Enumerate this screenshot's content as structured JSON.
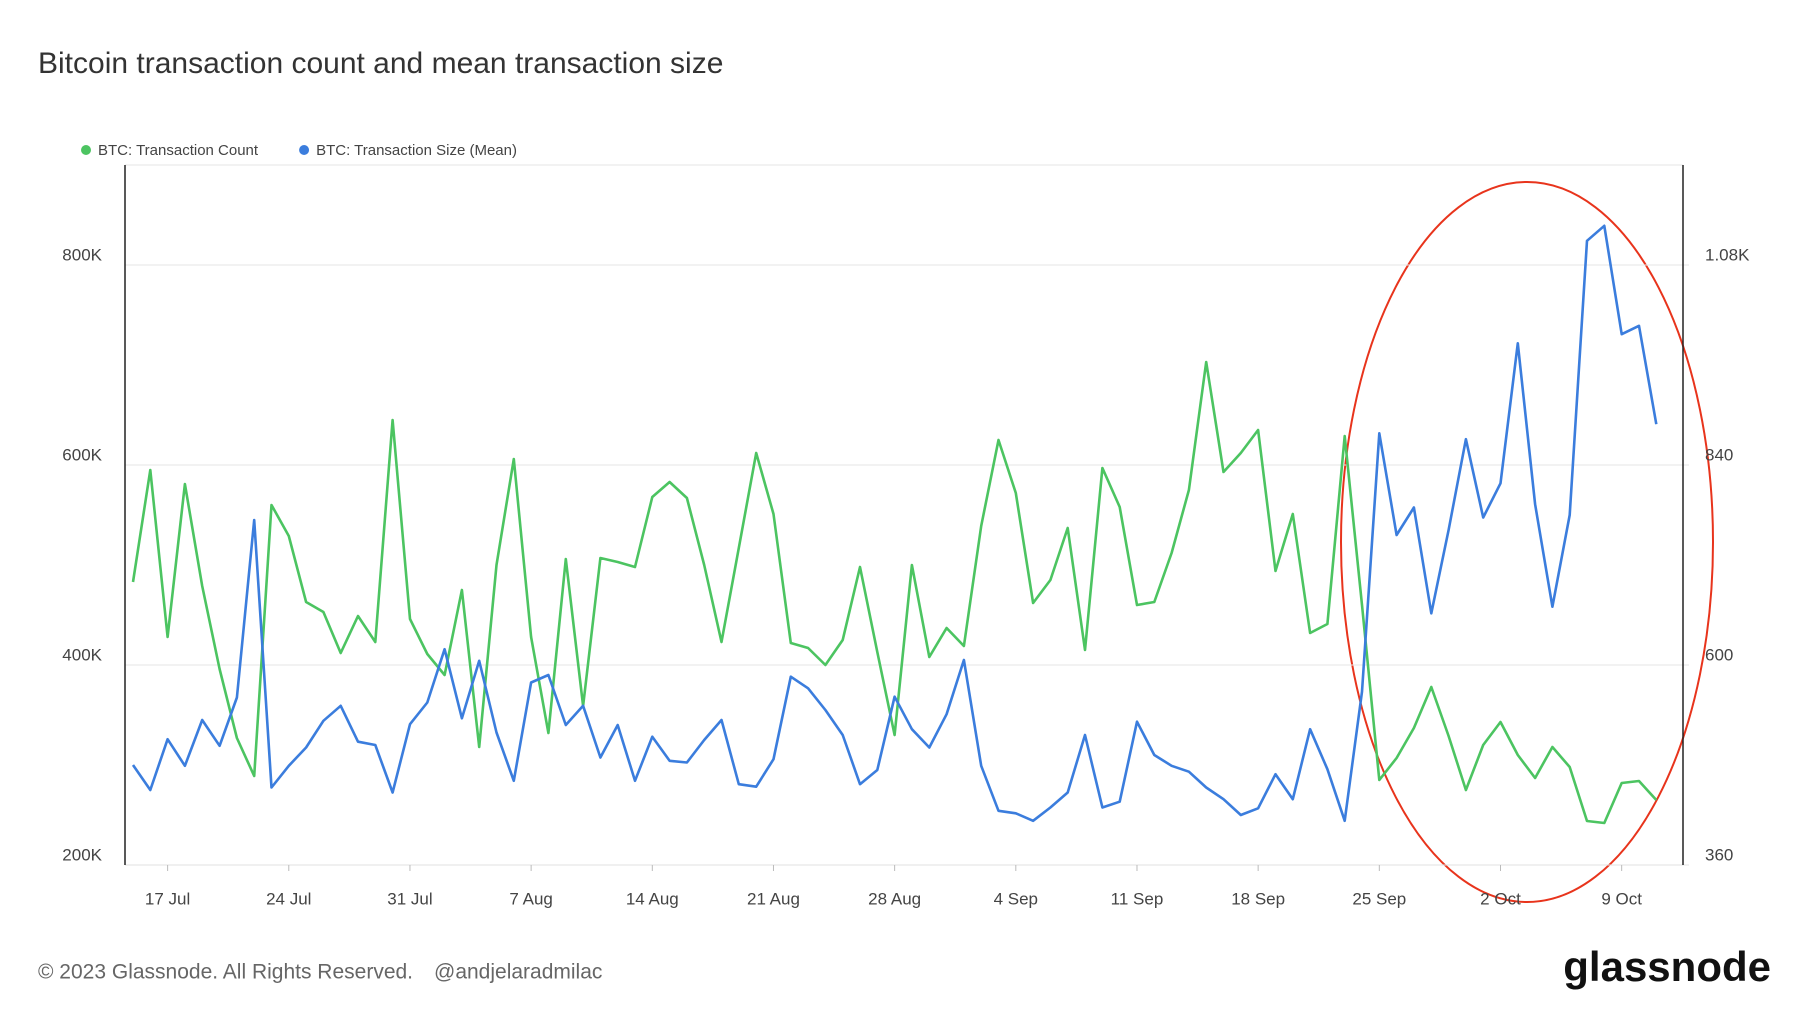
{
  "chart_data": {
    "type": "line",
    "title": "Bitcoin transaction count and mean transaction size",
    "categories": [
      null,
      null,
      "17 Jul",
      null,
      null,
      null,
      null,
      null,
      null,
      "24 Jul",
      null,
      null,
      null,
      null,
      null,
      null,
      "31 Jul",
      null,
      null,
      null,
      null,
      null,
      null,
      "7 Aug",
      null,
      null,
      null,
      null,
      null,
      null,
      "14 Aug",
      null,
      null,
      null,
      null,
      null,
      null,
      "21 Aug",
      null,
      null,
      null,
      null,
      null,
      null,
      "28 Aug",
      null,
      null,
      null,
      null,
      null,
      null,
      "4 Sep",
      null,
      null,
      null,
      null,
      null,
      null,
      "11 Sep",
      null,
      null,
      null,
      null,
      null,
      null,
      "18 Sep",
      null,
      null,
      null,
      null,
      null,
      null,
      "25 Sep",
      null,
      null,
      null,
      null,
      null,
      null,
      "2 Oct",
      null,
      null,
      null,
      null,
      null,
      null,
      "9 Oct",
      null,
      null
    ],
    "series": [
      {
        "name": "BTC: Transaction Count",
        "color": "#4cc461",
        "axis": "y",
        "values": [
          483000,
          595000,
          428000,
          581000,
          479000,
          396000,
          327000,
          289000,
          560000,
          529000,
          463000,
          453000,
          412000,
          449000,
          423000,
          645000,
          446000,
          411000,
          390000,
          475000,
          318000,
          500000,
          606000,
          428000,
          332000,
          506000,
          359000,
          507000,
          503000,
          498000,
          568000,
          583000,
          567000,
          500000,
          423000,
          517000,
          612000,
          551000,
          422000,
          417000,
          400000,
          425000,
          498000,
          413000,
          330000,
          500000,
          408000,
          437000,
          419000,
          539000,
          625000,
          572000,
          462000,
          485000,
          537000,
          415000,
          597000,
          558000,
          460000,
          463000,
          512000,
          575000,
          703000,
          593000,
          612000,
          635000,
          494000,
          551000,
          432000,
          441000,
          629000,
          460000,
          285000,
          307000,
          337000,
          378000,
          329000,
          275000,
          320000,
          343000,
          310000,
          287000,
          318000,
          298000,
          244000,
          242000,
          282000,
          284000,
          265000
        ]
      },
      {
        "name": "BTC: Transaction Size (Mean)",
        "color": "#3b7ddd",
        "axis": "y2",
        "values": [
          480,
          450,
          511,
          479,
          534,
          503,
          561,
          774,
          453,
          479,
          501,
          533,
          551,
          508,
          504,
          447,
          529,
          555,
          619,
          536,
          605,
          519,
          461,
          579,
          588,
          528,
          551,
          489,
          528,
          461,
          514,
          485,
          483,
          510,
          534,
          457,
          454,
          487,
          586,
          572,
          546,
          516,
          457,
          474,
          562,
          523,
          501,
          541,
          606,
          479,
          425,
          422,
          413,
          429,
          447,
          516,
          429,
          436,
          532,
          492,
          479,
          472,
          453,
          439,
          420,
          428,
          469,
          439,
          523,
          475,
          413,
          568,
          878,
          756,
          789,
          662,
          762,
          871,
          777,
          818,
          986,
          793,
          670,
          780,
          1109,
          1127,
          997,
          1007,
          889
        ]
      }
    ],
    "ylim": [
      200000,
      900000
    ],
    "yticks": [
      {
        "value": 200000,
        "label": "200K"
      },
      {
        "value": 400000,
        "label": "400K"
      },
      {
        "value": 600000,
        "label": "600K"
      },
      {
        "value": 800000,
        "label": "800K"
      }
    ],
    "y2lim": [
      360,
      1200
    ],
    "y2ticks": [
      360,
      600,
      840,
      {
        "value": 1080,
        "label": "1.08K"
      }
    ],
    "grid": true,
    "legend": "top-left"
  },
  "footer": {
    "copyright": "© 2023 Glassnode. All Rights Reserved.",
    "handle": "@andjelaradmilac",
    "logo": "glassnode"
  }
}
